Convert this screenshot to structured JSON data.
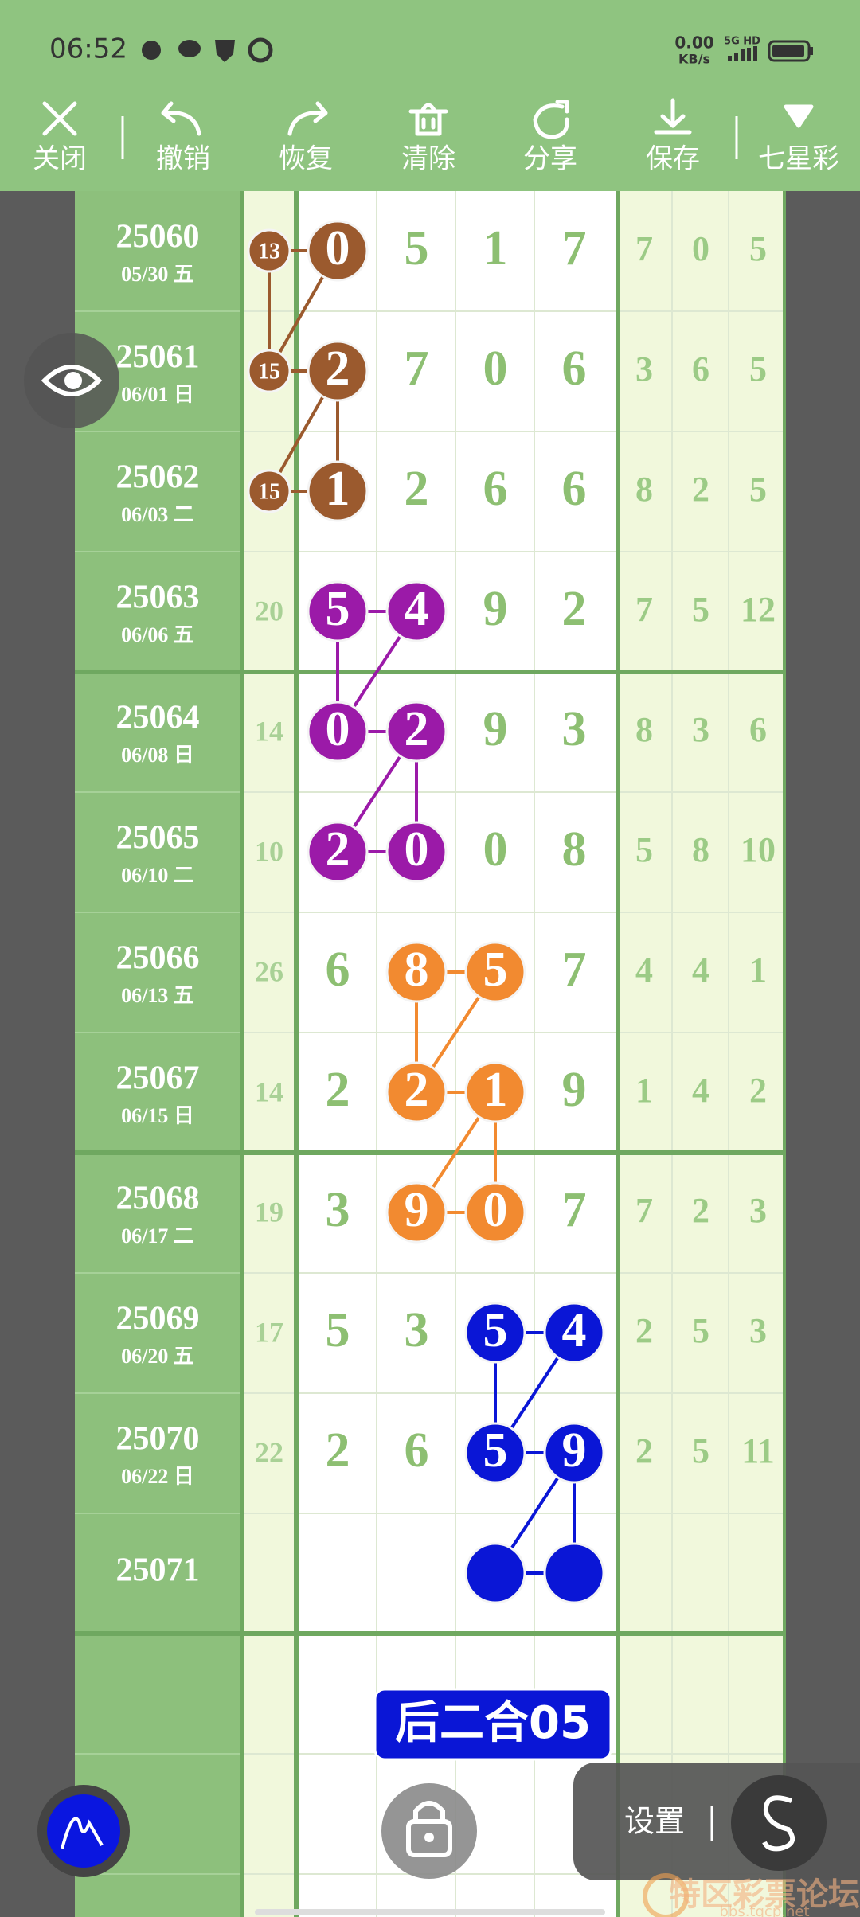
{
  "status": {
    "time": "06:52",
    "speed": "0.00",
    "speed_unit": "KB/s",
    "network": "5G HD"
  },
  "toolbar": [
    "关闭",
    "撤销",
    "恢复",
    "清除",
    "分享",
    "保存",
    "七星彩"
  ],
  "rows": [
    {
      "issue": "25060",
      "date": "05/30 五",
      "sum": 13,
      "digits": [
        0,
        5,
        1,
        7
      ],
      "extra": [
        7,
        0,
        5
      ]
    },
    {
      "issue": "25061",
      "date": "06/01 日",
      "sum": 15,
      "digits": [
        2,
        7,
        0,
        6
      ],
      "extra": [
        3,
        6,
        5
      ]
    },
    {
      "issue": "25062",
      "date": "06/03 二",
      "sum": 15,
      "digits": [
        1,
        2,
        6,
        6
      ],
      "extra": [
        8,
        2,
        5
      ]
    },
    {
      "issue": "25063",
      "date": "06/06 五",
      "sum": 20,
      "digits": [
        5,
        4,
        9,
        2
      ],
      "extra": [
        7,
        5,
        12
      ]
    },
    {
      "issue": "25064",
      "date": "06/08 日",
      "sum": 14,
      "digits": [
        0,
        2,
        9,
        3
      ],
      "extra": [
        8,
        3,
        6
      ]
    },
    {
      "issue": "25065",
      "date": "06/10 二",
      "sum": 10,
      "digits": [
        2,
        0,
        0,
        8
      ],
      "extra": [
        5,
        8,
        10
      ]
    },
    {
      "issue": "25066",
      "date": "06/13 五",
      "sum": 26,
      "digits": [
        6,
        8,
        5,
        7
      ],
      "extra": [
        4,
        4,
        1
      ]
    },
    {
      "issue": "25067",
      "date": "06/15 日",
      "sum": 14,
      "digits": [
        2,
        2,
        1,
        9
      ],
      "extra": [
        1,
        4,
        2
      ]
    },
    {
      "issue": "25068",
      "date": "06/17 二",
      "sum": 19,
      "digits": [
        3,
        9,
        0,
        7
      ],
      "extra": [
        7,
        2,
        3
      ]
    },
    {
      "issue": "25069",
      "date": "06/20 五",
      "sum": 17,
      "digits": [
        5,
        3,
        5,
        4
      ],
      "extra": [
        2,
        5,
        3
      ]
    },
    {
      "issue": "25070",
      "date": "06/22 日",
      "sum": 22,
      "digits": [
        2,
        6,
        5,
        9
      ],
      "extra": [
        2,
        5,
        11
      ]
    },
    {
      "issue": "25071"
    }
  ],
  "groups": [
    {
      "color": "#9b5a2e",
      "cells": [
        [
          0,
          0
        ],
        [
          0,
          1
        ],
        [
          1,
          0
        ],
        [
          1,
          1
        ],
        [
          2,
          0
        ],
        [
          2,
          1
        ]
      ],
      "links": [
        [
          [
            0,
            0
          ],
          [
            1,
            0
          ]
        ],
        [
          [
            0,
            1
          ],
          [
            1,
            0
          ]
        ],
        [
          [
            1,
            1
          ],
          [
            2,
            1
          ]
        ],
        [
          [
            1,
            1
          ],
          [
            2,
            0
          ]
        ]
      ]
    },
    {
      "color": "#9b1aa8",
      "cells": [
        [
          3,
          1
        ],
        [
          3,
          2
        ],
        [
          4,
          1
        ],
        [
          4,
          2
        ],
        [
          5,
          1
        ],
        [
          5,
          2
        ]
      ],
      "links": [
        [
          [
            3,
            1
          ],
          [
            4,
            1
          ]
        ],
        [
          [
            3,
            2
          ],
          [
            4,
            1
          ]
        ],
        [
          [
            4,
            2
          ],
          [
            5,
            2
          ]
        ],
        [
          [
            4,
            2
          ],
          [
            5,
            1
          ]
        ]
      ]
    },
    {
      "color": "#f28a30",
      "cells": [
        [
          6,
          2
        ],
        [
          6,
          3
        ],
        [
          7,
          2
        ],
        [
          7,
          3
        ],
        [
          8,
          2
        ],
        [
          8,
          3
        ]
      ],
      "links": [
        [
          [
            6,
            2
          ],
          [
            7,
            2
          ]
        ],
        [
          [
            6,
            3
          ],
          [
            7,
            2
          ]
        ],
        [
          [
            7,
            3
          ],
          [
            8,
            3
          ]
        ],
        [
          [
            7,
            3
          ],
          [
            8,
            2
          ]
        ]
      ]
    },
    {
      "color": "#0a16d6",
      "cells": [
        [
          9,
          3
        ],
        [
          9,
          4
        ],
        [
          10,
          3
        ],
        [
          10,
          4
        ],
        [
          11,
          3
        ],
        [
          11,
          4
        ]
      ],
      "links": [
        [
          [
            9,
            3
          ],
          [
            10,
            3
          ]
        ],
        [
          [
            9,
            4
          ],
          [
            10,
            3
          ]
        ],
        [
          [
            10,
            4
          ],
          [
            11,
            4
          ]
        ],
        [
          [
            10,
            4
          ],
          [
            11,
            3
          ]
        ]
      ]
    }
  ],
  "banner": "后二合05",
  "settings": "设置",
  "watermark": {
    "name": "特区彩票论坛",
    "site": "bbs.tqcp.net"
  }
}
